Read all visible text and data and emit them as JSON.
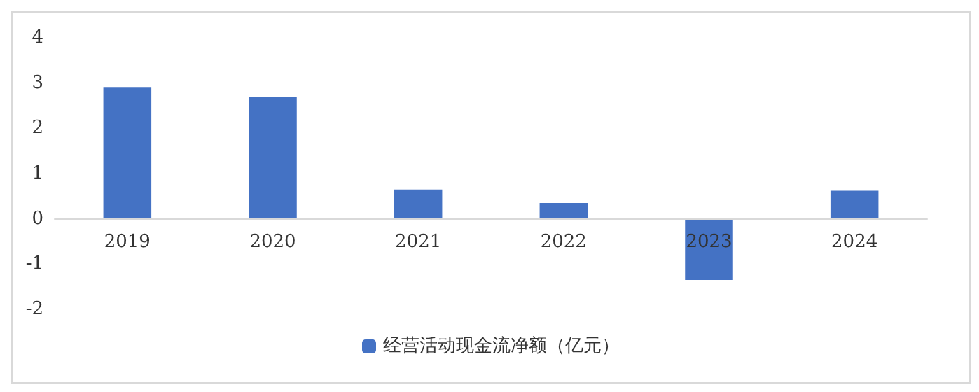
{
  "chart_data": {
    "type": "bar",
    "categories": [
      "2019",
      "2020",
      "2021",
      "2022",
      "2023",
      "2024"
    ],
    "series": [
      {
        "name": "经营活动现金流净额（亿元）",
        "color": "#4472c4",
        "values": [
          2.9,
          2.7,
          0.65,
          0.35,
          -1.35,
          0.62
        ]
      }
    ],
    "ylim": [
      -2,
      4
    ],
    "yticks": [
      -2,
      -1,
      0,
      1,
      2,
      3,
      4
    ],
    "grid": false,
    "legend": "bottom"
  }
}
